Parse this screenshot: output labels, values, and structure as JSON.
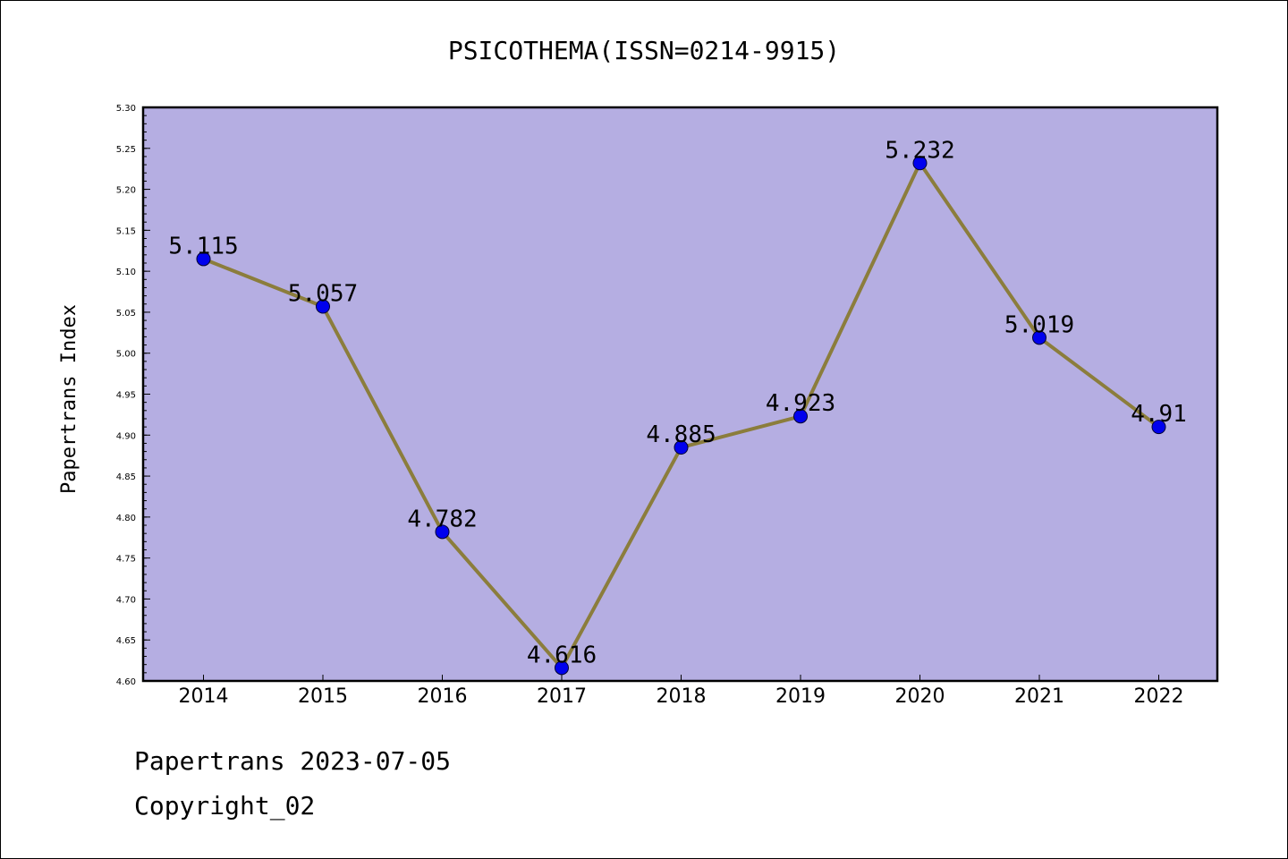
{
  "chart_data": {
    "type": "line",
    "title": "PSICOTHEMA(ISSN=0214-9915)",
    "xlabel": "",
    "ylabel": "Papertrans Index",
    "categories": [
      "2014",
      "2015",
      "2016",
      "2017",
      "2018",
      "2019",
      "2020",
      "2021",
      "2022"
    ],
    "series": [
      {
        "values": [
          5.115,
          5.057,
          4.782,
          4.616,
          4.885,
          4.923,
          5.232,
          5.019,
          4.91
        ],
        "labels": [
          "5.115",
          "5.057",
          "4.782",
          "4.616",
          "4.885",
          "4.923",
          "5.232",
          "5.019",
          "4.91"
        ]
      }
    ],
    "ylim": [
      4.6,
      5.3
    ],
    "yticks": [
      "4.60",
      "4.65",
      "4.70",
      "4.75",
      "4.80",
      "4.85",
      "4.90",
      "4.95",
      "5.00",
      "5.05",
      "5.10",
      "5.15",
      "5.20",
      "5.25",
      "5.30"
    ],
    "grid": false,
    "legend": "none",
    "colors": {
      "plot_background": "#b5aee2",
      "line": "#8b7d3c",
      "marker": "#0000ee",
      "axis": "#000000"
    }
  },
  "footer": {
    "line1": "Papertrans 2023-07-05",
    "line2": "Copyright_02"
  }
}
